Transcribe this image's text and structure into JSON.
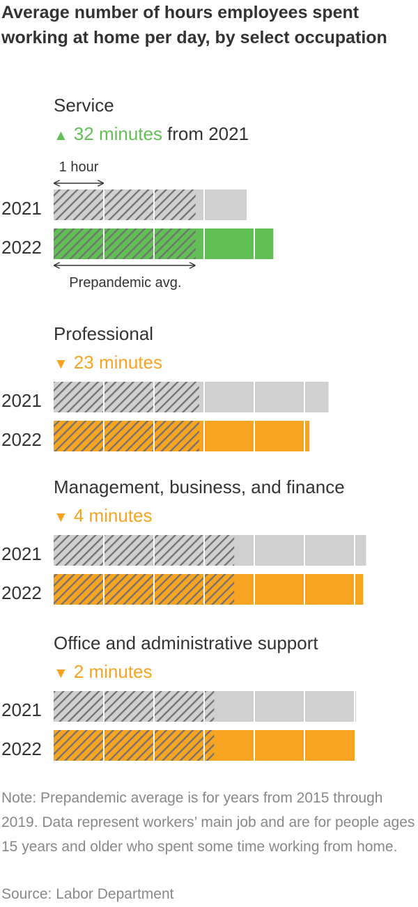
{
  "title": "Average number of hours employees spent working at home per day, by select occupation",
  "note": "Note: Prepandemic average is for years from 2015 through 2019. Data represent workers’ main job and are for people ages 15 years and older who spent some time working from home.",
  "source": "Source: Labor Department",
  "colors": {
    "up": "#62bf55",
    "down": "#f6a422",
    "base": "#d0d0d0",
    "hatch": "#707070",
    "text": "#333333",
    "muted": "#888888"
  },
  "chart_data": {
    "type": "bar",
    "unit": "hours",
    "scale_label": "1 hour",
    "prepandemic_label": "Prepandemic avg.",
    "panels": [
      {
        "name": "Service",
        "change_icon": "▲",
        "change_text": "32 minutes",
        "change_suffix": "from 2021",
        "direction": "up",
        "prepandemic": 2.83,
        "categories": [
          "2021",
          "2022"
        ],
        "values": [
          3.85,
          4.38
        ]
      },
      {
        "name": "Professional",
        "change_icon": "▼",
        "change_text": "23 minutes",
        "change_suffix": "",
        "direction": "down",
        "prepandemic": 2.9,
        "categories": [
          "2021",
          "2022"
        ],
        "values": [
          5.48,
          5.1
        ]
      },
      {
        "name": "Management, business, and finance",
        "change_icon": "▼",
        "change_text": "4 minutes",
        "change_suffix": "",
        "direction": "down",
        "prepandemic": 3.6,
        "categories": [
          "2021",
          "2022"
        ],
        "values": [
          6.23,
          6.17
        ]
      },
      {
        "name": "Office and administrative support",
        "change_icon": "▼",
        "change_text": "2 minutes",
        "change_suffix": "",
        "direction": "down",
        "prepandemic": 3.2,
        "categories": [
          "2021",
          "2022"
        ],
        "values": [
          6.03,
          6.0
        ]
      }
    ]
  }
}
